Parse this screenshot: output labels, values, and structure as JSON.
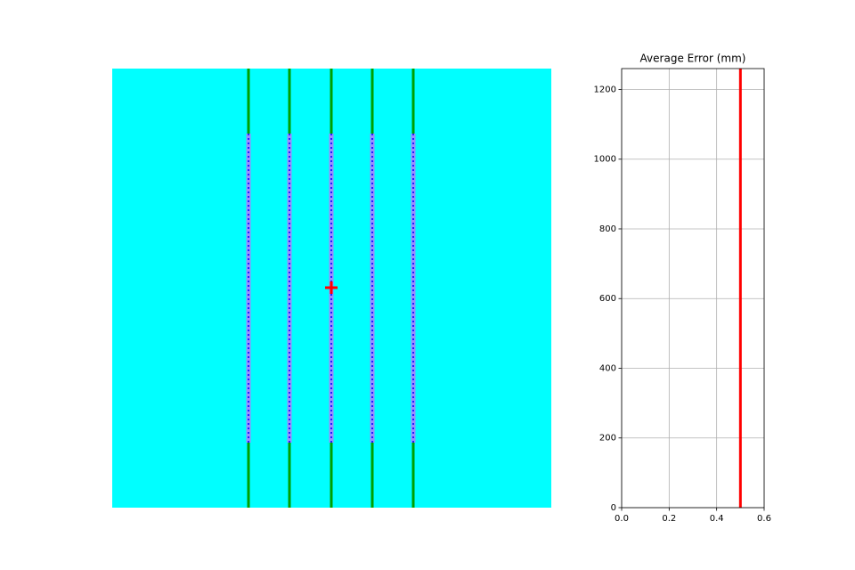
{
  "chart_data": {
    "type": "line",
    "title": "Average Error (mm)",
    "x": [
      0.5,
      0.5
    ],
    "values": [
      0,
      1260
    ],
    "color": "#ff0000",
    "xlim": [
      0,
      0.6
    ],
    "xticks": [
      {
        "value": 0,
        "label": "0.0"
      },
      {
        "value": 0.2,
        "label": "0.2"
      },
      {
        "value": 0.4,
        "label": "0.4"
      },
      {
        "value": 0.6,
        "label": "0.6"
      }
    ],
    "ylim": [
      0,
      1260
    ],
    "yticks": [
      0,
      200,
      400,
      600,
      800,
      1000,
      1200
    ],
    "grid": true
  }
}
